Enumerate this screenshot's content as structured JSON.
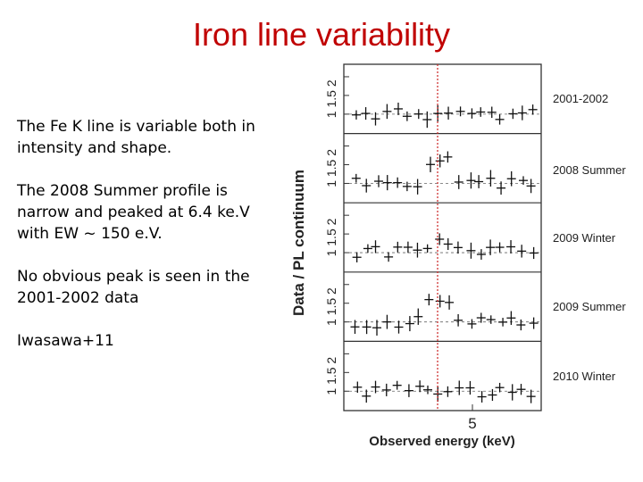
{
  "slide": {
    "title": "Iron line variability",
    "paragraphs": [
      "The Fe K line is variable both in intensity and shape.",
      "The 2008 Summer profile is narrow and peaked at 6.4 ke.V with EW ~ 150 e.V.",
      "No obvious peak is seen in the 2001-2002 data",
      "Iwasawa+11"
    ]
  },
  "figure": {
    "ylabel": "Data / PL continuum",
    "xlabel": "Observed energy (keV)",
    "xtick": "5",
    "ytick_labels": [
      "1",
      "1.5",
      "2"
    ],
    "panels": [
      {
        "label": "2001-2002"
      },
      {
        "label": "2008 Summer"
      },
      {
        "label": "2009 Winter"
      },
      {
        "label": "2009 Summer"
      },
      {
        "label": "2010 Winter"
      }
    ],
    "colors": {
      "title": "#c00000",
      "marker_line": "#cc2222"
    }
  }
}
